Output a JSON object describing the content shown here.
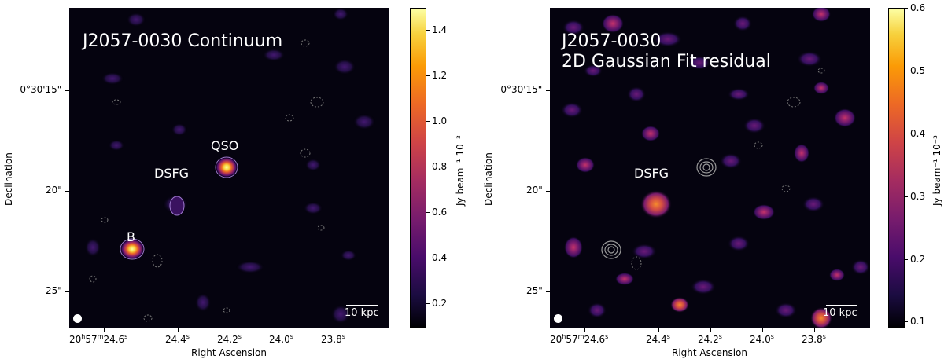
{
  "left_panel": {
    "title_line1": "J2057-0030 Continuum",
    "labels": {
      "qso": "QSO",
      "dsfg": "DSFG",
      "b": "B"
    },
    "scalebar_label": "10 kpc",
    "xlabel": "Right Ascension",
    "ylabel": "Declination",
    "xticks": [
      "20h57m24.6s",
      "24.4s",
      "24.2s",
      "24.0s",
      "23.8s"
    ],
    "xtick_main": {
      "prefix": "20",
      "h": "h",
      "mid": "57",
      "m": "m",
      "val": "24.6",
      "s": "s"
    },
    "yticks": [
      "-0°30'15\"",
      "20\"",
      "25\""
    ],
    "colorbar": {
      "label": "Jy beam⁻¹ 10⁻³",
      "ticks": [
        "1.4",
        "1.2",
        "1.0",
        "0.8",
        "0.6",
        "0.4",
        "0.2"
      ],
      "range": [
        0.08,
        1.5
      ],
      "cmap": "inferno"
    }
  },
  "right_panel": {
    "title_line1": "J2057-0030",
    "title_line2": "2D Gaussian Fit residual",
    "labels": {
      "dsfg": "DSFG"
    },
    "scalebar_label": "10 kpc",
    "xlabel": "Right Ascension",
    "ylabel": "Declination",
    "yticks": [
      "-0°30'15\"",
      "20\"",
      "25\""
    ],
    "colorbar": {
      "label": "Jy beam⁻¹ 10⁻³",
      "ticks": [
        "0.6",
        "0.5",
        "0.4",
        "0.3",
        "0.2",
        "0.1"
      ],
      "range": [
        0.09,
        0.6
      ],
      "cmap": "inferno"
    }
  }
}
